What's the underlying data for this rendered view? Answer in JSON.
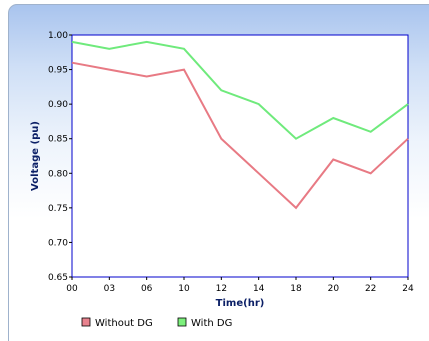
{
  "chart_data": {
    "type": "line",
    "title": "",
    "xlabel": "Time(hr)",
    "ylabel": "Voltage (pu)",
    "categories": [
      "00",
      "03",
      "06",
      "10",
      "12",
      "14",
      "18",
      "20",
      "22",
      "24"
    ],
    "yticks": [
      "0.65",
      "0.70",
      "0.75",
      "0.80",
      "0.85",
      "0.90",
      "0.95",
      "1.00"
    ],
    "ylim": [
      0.65,
      1.0
    ],
    "grid": false,
    "legend_position": "bottom-left",
    "series": [
      {
        "name": "Without DG",
        "color": "#e87a84",
        "swatch": "#e8828e",
        "values": [
          0.96,
          0.95,
          0.94,
          0.95,
          0.85,
          0.8,
          0.75,
          0.82,
          0.8,
          0.85
        ]
      },
      {
        "name": "With DG",
        "color": "#6fea7c",
        "swatch": "#7cf07c",
        "values": [
          0.99,
          0.98,
          0.99,
          0.98,
          0.92,
          0.9,
          0.85,
          0.88,
          0.86,
          0.9
        ]
      }
    ]
  }
}
